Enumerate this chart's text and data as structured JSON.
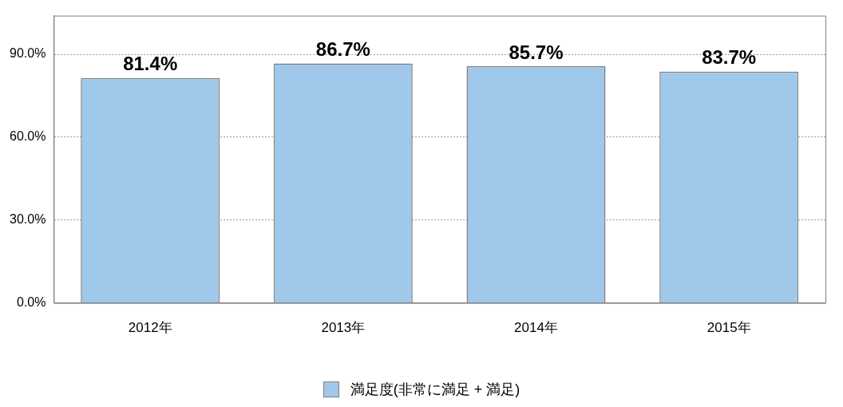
{
  "chart_data": {
    "type": "bar",
    "categories": [
      "2012年",
      "2013年",
      "2014年",
      "2015年"
    ],
    "series": [
      {
        "name": "満足度(非常に満足 + 満足)",
        "color": "#9fc8ea",
        "values": [
          81.4,
          86.7,
          85.7,
          83.7
        ]
      }
    ],
    "value_labels": [
      "81.4%",
      "86.7%",
      "85.7%",
      "83.7%"
    ],
    "ylim": [
      0,
      104
    ],
    "yticks": [
      {
        "value": 0,
        "label": "0.0%"
      },
      {
        "value": 30,
        "label": "30.0%"
      },
      {
        "value": 60,
        "label": "60.0%"
      },
      {
        "value": 90,
        "label": "90.0%"
      }
    ],
    "grid": "y",
    "legend": "bottom"
  }
}
